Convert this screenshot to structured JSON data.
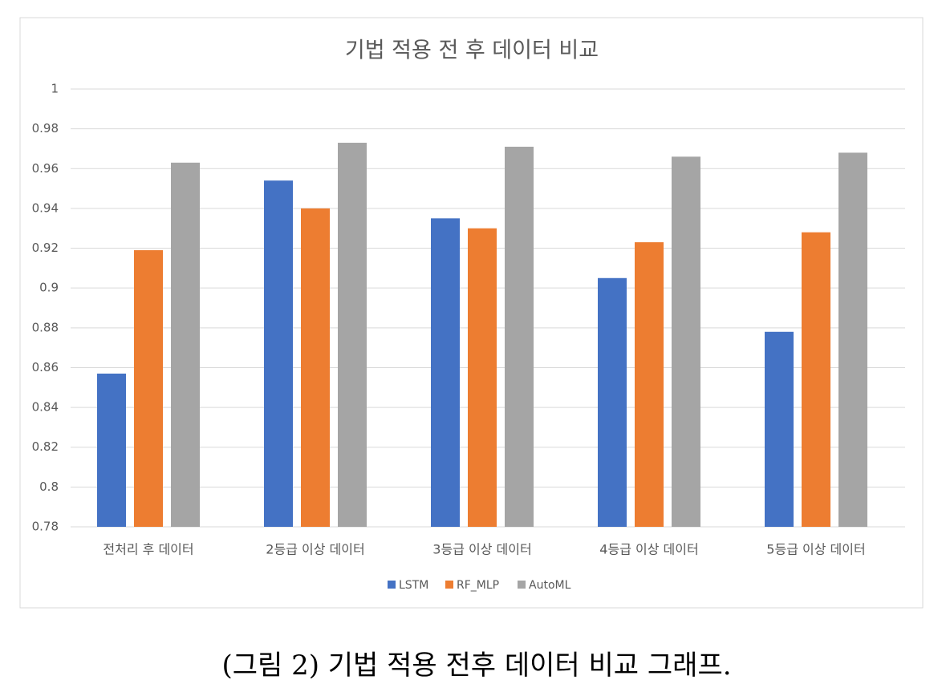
{
  "chart_data": {
    "type": "bar",
    "title": "기법 적용 전 후 데이터 비교",
    "categories": [
      "전처리 후 데이터",
      "2등급 이상 데이터",
      "3등급 이상 데이터",
      "4등급 이상 데이터",
      "5등급 이상 데이터"
    ],
    "series": [
      {
        "name": "LSTM",
        "color": "#4472c4",
        "values": [
          0.857,
          0.954,
          0.935,
          0.905,
          0.878
        ]
      },
      {
        "name": "RF_MLP",
        "color": "#ed7d31",
        "values": [
          0.919,
          0.94,
          0.93,
          0.923,
          0.928
        ]
      },
      {
        "name": "AutoML",
        "color": "#a5a5a5",
        "values": [
          0.963,
          0.973,
          0.971,
          0.966,
          0.968
        ]
      }
    ],
    "ylim": [
      0.78,
      1
    ],
    "yticks": [
      0.78,
      0.8,
      0.82,
      0.84,
      0.86,
      0.88,
      0.9,
      0.92,
      0.94,
      0.96,
      0.98,
      1
    ],
    "grid": true,
    "legend": "bottom"
  },
  "caption": "(그림 2) 기법 적용 전후 데이터 비교 그래프."
}
